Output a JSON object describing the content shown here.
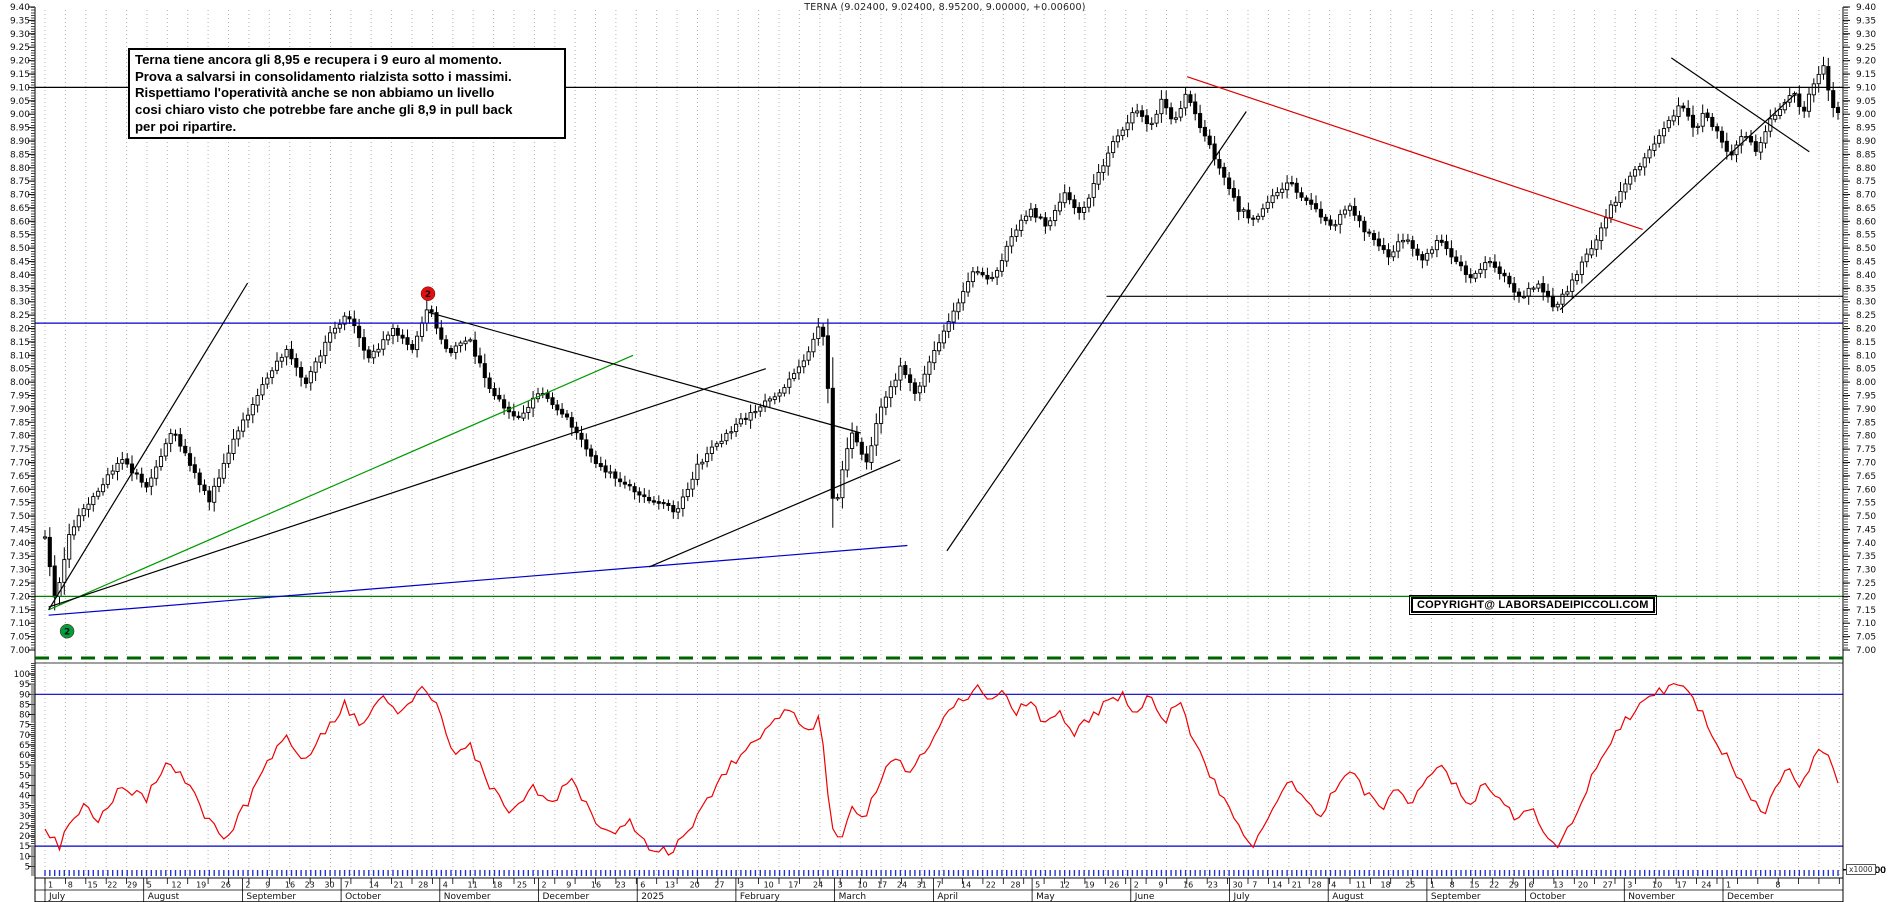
{
  "window": {
    "title": "TERNA (9.02400, 9.02400, 8.95200, 9.00000, +0.00600)"
  },
  "annotation": {
    "text": "Terna tiene ancora gli 8,95 e recupera i 9 euro al momento.\nProva a salvarsi in consolidamento rialzista sotto i massimi.\nRispettiamo l'operatività anche se non abbiamo un livello\ncosi chiaro visto che potrebbe fare anche gli 8,9 in pull back\nper poi ripartire."
  },
  "copyright": {
    "text": "COPYRIGHT@ LABORSADEIPICCOLI.COM"
  },
  "volume_unit_label": "x1000",
  "colors": {
    "candle": "#000000",
    "volume_bar": "#2233cc",
    "oscillator": "#ee0000",
    "grid": "#b4b4b4",
    "level_blue": "#0000cc",
    "level_green": "#008000",
    "level_black": "#000000",
    "trend_red": "#dd0000",
    "trend_green": "#009900",
    "panel_top_dashed": "#006400",
    "marker_red": "#e01010",
    "marker_green": "#00a040"
  },
  "chart_data": {
    "type": "candlestick",
    "symbol": "TERNA",
    "quote": {
      "open": "9.02400",
      "high": "9.02400",
      "low": "8.95200",
      "close": "9.00000",
      "change": "+0.00600"
    },
    "y_axis": {
      "min": 7.0,
      "max": 9.4,
      "label_step": 0.05,
      "minor_step": 0.01
    },
    "oscillator_axis": {
      "min": 5,
      "max": 100,
      "label_step": 5
    },
    "volume_axis": {
      "min": 1000,
      "max": 15000,
      "step": 1000,
      "unit": "x1000"
    },
    "x_axis": {
      "months": [
        {
          "label": "July",
          "weeks": [
            1,
            8,
            15,
            22,
            29
          ]
        },
        {
          "label": "August",
          "weeks": [
            5,
            12,
            19,
            26
          ]
        },
        {
          "label": "September",
          "weeks": [
            2,
            9,
            16,
            23,
            30
          ]
        },
        {
          "label": "October",
          "weeks": [
            7,
            14,
            21,
            28
          ]
        },
        {
          "label": "November",
          "weeks": [
            4,
            11,
            18,
            25
          ]
        },
        {
          "label": "December",
          "weeks": [
            2,
            9,
            16,
            23
          ]
        },
        {
          "label": "2025",
          "weeks": [
            6,
            13,
            20,
            27
          ]
        },
        {
          "label": "February",
          "weeks": [
            3,
            10,
            17,
            24
          ]
        },
        {
          "label": "March",
          "weeks": [
            3,
            10,
            17,
            24,
            31
          ]
        },
        {
          "label": "April",
          "weeks": [
            7,
            14,
            22,
            28
          ]
        },
        {
          "label": "May",
          "weeks": [
            5,
            12,
            19,
            26
          ]
        },
        {
          "label": "June",
          "weeks": [
            2,
            9,
            16,
            23
          ]
        },
        {
          "label": "July",
          "weeks": [
            30,
            7,
            14,
            21,
            28
          ]
        },
        {
          "label": "August",
          "weeks": [
            4,
            11,
            18,
            25
          ]
        },
        {
          "label": "September",
          "weeks": [
            1,
            8,
            15,
            22,
            29
          ]
        },
        {
          "label": "October",
          "weeks": [
            6,
            13,
            20,
            27
          ]
        },
        {
          "label": "November",
          "weeks": [
            3,
            10,
            17,
            24
          ]
        },
        {
          "label": "December",
          "weeks": [
            1,
            8
          ]
        }
      ]
    },
    "price_anchors": [
      [
        0,
        7.42
      ],
      [
        0.006,
        7.17
      ],
      [
        0.014,
        7.45
      ],
      [
        0.028,
        7.58
      ],
      [
        0.042,
        7.72
      ],
      [
        0.057,
        7.6
      ],
      [
        0.071,
        7.83
      ],
      [
        0.086,
        7.62
      ],
      [
        0.092,
        7.56
      ],
      [
        0.106,
        7.8
      ],
      [
        0.121,
        7.98
      ],
      [
        0.134,
        8.12
      ],
      [
        0.145,
        7.99
      ],
      [
        0.159,
        8.18
      ],
      [
        0.169,
        8.26
      ],
      [
        0.18,
        8.08
      ],
      [
        0.194,
        8.2
      ],
      [
        0.205,
        8.12
      ],
      [
        0.214,
        8.28
      ],
      [
        0.225,
        8.1
      ],
      [
        0.236,
        8.17
      ],
      [
        0.249,
        7.96
      ],
      [
        0.264,
        7.86
      ],
      [
        0.277,
        7.97
      ],
      [
        0.292,
        7.86
      ],
      [
        0.305,
        7.72
      ],
      [
        0.32,
        7.63
      ],
      [
        0.336,
        7.56
      ],
      [
        0.353,
        7.52
      ],
      [
        0.365,
        7.7
      ],
      [
        0.379,
        7.8
      ],
      [
        0.396,
        7.9
      ],
      [
        0.413,
        7.98
      ],
      [
        0.426,
        8.12
      ],
      [
        0.433,
        8.24
      ],
      [
        0.437,
        7.95
      ],
      [
        0.44,
        7.45
      ],
      [
        0.443,
        7.62
      ],
      [
        0.45,
        7.82
      ],
      [
        0.458,
        7.7
      ],
      [
        0.467,
        7.92
      ],
      [
        0.477,
        8.05
      ],
      [
        0.486,
        7.95
      ],
      [
        0.496,
        8.12
      ],
      [
        0.508,
        8.28
      ],
      [
        0.519,
        8.42
      ],
      [
        0.528,
        8.38
      ],
      [
        0.538,
        8.52
      ],
      [
        0.549,
        8.65
      ],
      [
        0.559,
        8.58
      ],
      [
        0.569,
        8.7
      ],
      [
        0.578,
        8.62
      ],
      [
        0.588,
        8.78
      ],
      [
        0.598,
        8.92
      ],
      [
        0.608,
        9.02
      ],
      [
        0.616,
        8.95
      ],
      [
        0.623,
        9.05
      ],
      [
        0.63,
        8.97
      ],
      [
        0.637,
        9.08
      ],
      [
        0.644,
        8.95
      ],
      [
        0.654,
        8.82
      ],
      [
        0.665,
        8.65
      ],
      [
        0.675,
        8.6
      ],
      [
        0.684,
        8.7
      ],
      [
        0.694,
        8.75
      ],
      [
        0.706,
        8.66
      ],
      [
        0.717,
        8.58
      ],
      [
        0.728,
        8.65
      ],
      [
        0.738,
        8.55
      ],
      [
        0.749,
        8.47
      ],
      [
        0.758,
        8.54
      ],
      [
        0.768,
        8.46
      ],
      [
        0.778,
        8.53
      ],
      [
        0.787,
        8.45
      ],
      [
        0.796,
        8.38
      ],
      [
        0.805,
        8.46
      ],
      [
        0.814,
        8.39
      ],
      [
        0.823,
        8.31
      ],
      [
        0.832,
        8.37
      ],
      [
        0.841,
        8.28
      ],
      [
        0.849,
        8.34
      ],
      [
        0.857,
        8.44
      ],
      [
        0.866,
        8.55
      ],
      [
        0.874,
        8.66
      ],
      [
        0.882,
        8.74
      ],
      [
        0.891,
        8.82
      ],
      [
        0.898,
        8.9
      ],
      [
        0.905,
        8.97
      ],
      [
        0.912,
        9.04
      ],
      [
        0.92,
        8.94
      ],
      [
        0.926,
        9.01
      ],
      [
        0.934,
        8.91
      ],
      [
        0.94,
        8.85
      ],
      [
        0.948,
        8.93
      ],
      [
        0.955,
        8.85
      ],
      [
        0.961,
        8.96
      ],
      [
        0.968,
        9.03
      ],
      [
        0.975,
        9.09
      ],
      [
        0.98,
        9.0
      ],
      [
        0.986,
        9.11
      ],
      [
        0.992,
        9.19
      ],
      [
        0.996,
        9.03
      ],
      [
        1,
        9.0
      ]
    ],
    "oscillator_anchors": [
      [
        0,
        25
      ],
      [
        0.008,
        15
      ],
      [
        0.02,
        35
      ],
      [
        0.031,
        28
      ],
      [
        0.042,
        45
      ],
      [
        0.056,
        38
      ],
      [
        0.067,
        55
      ],
      [
        0.078,
        48
      ],
      [
        0.089,
        30
      ],
      [
        0.1,
        18
      ],
      [
        0.112,
        35
      ],
      [
        0.123,
        55
      ],
      [
        0.134,
        70
      ],
      [
        0.145,
        58
      ],
      [
        0.156,
        72
      ],
      [
        0.167,
        85
      ],
      [
        0.176,
        75
      ],
      [
        0.187,
        88
      ],
      [
        0.198,
        80
      ],
      [
        0.206,
        90
      ],
      [
        0.214,
        93
      ],
      [
        0.22,
        80
      ],
      [
        0.229,
        60
      ],
      [
        0.237,
        65
      ],
      [
        0.248,
        45
      ],
      [
        0.259,
        30
      ],
      [
        0.271,
        45
      ],
      [
        0.282,
        35
      ],
      [
        0.293,
        48
      ],
      [
        0.304,
        32
      ],
      [
        0.315,
        20
      ],
      [
        0.326,
        28
      ],
      [
        0.337,
        15
      ],
      [
        0.349,
        12
      ],
      [
        0.36,
        25
      ],
      [
        0.371,
        40
      ],
      [
        0.382,
        55
      ],
      [
        0.393,
        65
      ],
      [
        0.404,
        75
      ],
      [
        0.416,
        82
      ],
      [
        0.424,
        70
      ],
      [
        0.432,
        78
      ],
      [
        0.439,
        25
      ],
      [
        0.443,
        15
      ],
      [
        0.45,
        35
      ],
      [
        0.457,
        28
      ],
      [
        0.466,
        48
      ],
      [
        0.474,
        60
      ],
      [
        0.482,
        50
      ],
      [
        0.491,
        62
      ],
      [
        0.499,
        75
      ],
      [
        0.508,
        85
      ],
      [
        0.515,
        90
      ],
      [
        0.521,
        93
      ],
      [
        0.527,
        85
      ],
      [
        0.535,
        92
      ],
      [
        0.541,
        80
      ],
      [
        0.549,
        88
      ],
      [
        0.558,
        75
      ],
      [
        0.566,
        82
      ],
      [
        0.574,
        70
      ],
      [
        0.583,
        78
      ],
      [
        0.591,
        85
      ],
      [
        0.6,
        90
      ],
      [
        0.608,
        82
      ],
      [
        0.616,
        88
      ],
      [
        0.625,
        78
      ],
      [
        0.633,
        85
      ],
      [
        0.641,
        65
      ],
      [
        0.65,
        50
      ],
      [
        0.658,
        38
      ],
      [
        0.666,
        25
      ],
      [
        0.673,
        15
      ],
      [
        0.679,
        22
      ],
      [
        0.686,
        35
      ],
      [
        0.694,
        48
      ],
      [
        0.703,
        40
      ],
      [
        0.711,
        30
      ],
      [
        0.719,
        42
      ],
      [
        0.728,
        52
      ],
      [
        0.736,
        42
      ],
      [
        0.745,
        32
      ],
      [
        0.753,
        45
      ],
      [
        0.761,
        35
      ],
      [
        0.77,
        48
      ],
      [
        0.778,
        58
      ],
      [
        0.786,
        45
      ],
      [
        0.795,
        35
      ],
      [
        0.803,
        48
      ],
      [
        0.811,
        38
      ],
      [
        0.82,
        28
      ],
      [
        0.828,
        35
      ],
      [
        0.837,
        22
      ],
      [
        0.844,
        15
      ],
      [
        0.852,
        28
      ],
      [
        0.861,
        45
      ],
      [
        0.868,
        60
      ],
      [
        0.877,
        72
      ],
      [
        0.885,
        80
      ],
      [
        0.894,
        88
      ],
      [
        0.902,
        92
      ],
      [
        0.909,
        95
      ],
      [
        0.916,
        90
      ],
      [
        0.923,
        82
      ],
      [
        0.93,
        70
      ],
      [
        0.937,
        60
      ],
      [
        0.944,
        50
      ],
      [
        0.951,
        40
      ],
      [
        0.958,
        30
      ],
      [
        0.965,
        42
      ],
      [
        0.972,
        55
      ],
      [
        0.979,
        45
      ],
      [
        0.986,
        58
      ],
      [
        0.991,
        65
      ],
      [
        0.997,
        55
      ],
      [
        1,
        48
      ]
    ],
    "volume_spikes": [
      [
        0.044,
        5200
      ],
      [
        0.171,
        5500
      ],
      [
        0.226,
        7000
      ],
      [
        0.305,
        4800
      ],
      [
        0.399,
        6200
      ],
      [
        0.44,
        7500
      ],
      [
        0.535,
        8200
      ],
      [
        0.634,
        14500
      ],
      [
        0.675,
        9200
      ],
      [
        0.945,
        9600
      ],
      [
        0.995,
        8600
      ]
    ],
    "volume_base_x1000": [
      400,
      3000
    ],
    "horizontal_levels": [
      {
        "price": 9.1,
        "color": "#000000",
        "from": 0,
        "to": 1
      },
      {
        "price": 8.22,
        "color": "#0000cc",
        "from": 0,
        "to": 1
      },
      {
        "price": 7.2,
        "color": "#008000",
        "from": 0,
        "to": 1
      },
      {
        "price": 8.32,
        "color": "#000000",
        "from": 0.592,
        "to": 1
      }
    ],
    "oscillator_levels": [
      {
        "value": 90,
        "color": "#0000cc"
      },
      {
        "value": 15,
        "color": "#0000cc"
      }
    ],
    "trendlines": [
      [
        0.002,
        7.15,
        0.328,
        8.1,
        "#009900"
      ],
      [
        0.002,
        7.15,
        0.113,
        8.37,
        "#000000"
      ],
      [
        0.002,
        7.16,
        0.402,
        8.05,
        "#000000"
      ],
      [
        0.002,
        7.13,
        0.481,
        7.39,
        "#0000cc"
      ],
      [
        0.214,
        8.26,
        0.455,
        7.81,
        "#000000"
      ],
      [
        0.337,
        7.31,
        0.477,
        7.71,
        "#000000"
      ],
      [
        0.503,
        7.37,
        0.67,
        9.01,
        "#000000"
      ],
      [
        0.637,
        9.14,
        0.891,
        8.57,
        "#dd0000"
      ],
      [
        0.845,
        8.27,
        0.977,
        9.08,
        "#000000"
      ],
      [
        0.907,
        9.21,
        0.984,
        8.86,
        "#000000"
      ]
    ],
    "markers": [
      {
        "label": "2",
        "color": "#e01010",
        "t": 0.2136,
        "price": 8.33
      },
      {
        "label": "2",
        "color": "#00a040",
        "t": 0.0123,
        "price": 7.07
      }
    ]
  }
}
